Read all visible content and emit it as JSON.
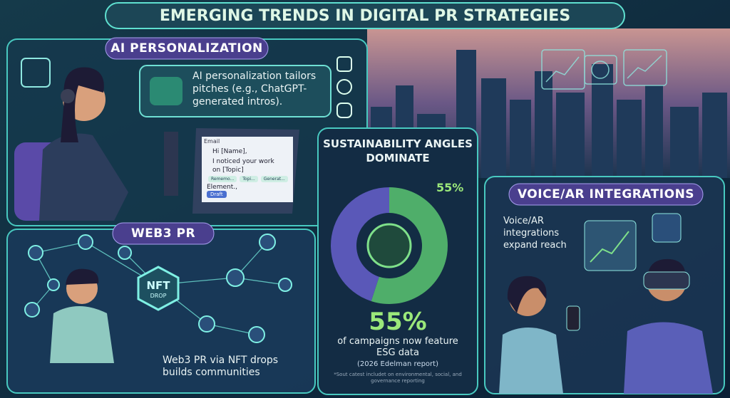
{
  "title": "EMERGING TRENDS IN DIGITAL PR STRATEGIES",
  "ai_personalization": {
    "heading": "AI PERSONALIZATION",
    "bubble": "AI personalization tailors pitches (e.g., ChatGPT-generated intros).",
    "email": {
      "label": "Email",
      "greeting": "Hi [Name],",
      "body": "I noticed your work on [Topic]",
      "chips": [
        "Rememo...",
        "Topi...",
        "Generat..."
      ],
      "closing": "Element.,",
      "button": "Draft"
    }
  },
  "web3_pr": {
    "heading": "WEB3 PR",
    "badge": [
      "NFT",
      "DROP"
    ],
    "caption": "Web3 PR via NFT drops builds communities"
  },
  "sustainability": {
    "heading": "SUSTAINABILITY ANGLES DOMINATE",
    "donut": {
      "value": 55,
      "label": "55%"
    },
    "headline": "55%",
    "caption": "of campaigns now feature ESG data",
    "source": "(2026 Edelman report)",
    "footnote": "*Sout catest includet on environmental, social, and governance reporting"
  },
  "voice_ar": {
    "heading": "VOICE/AR INTEGRATIONS",
    "caption": "Voice/AR integrations expand reach"
  }
}
